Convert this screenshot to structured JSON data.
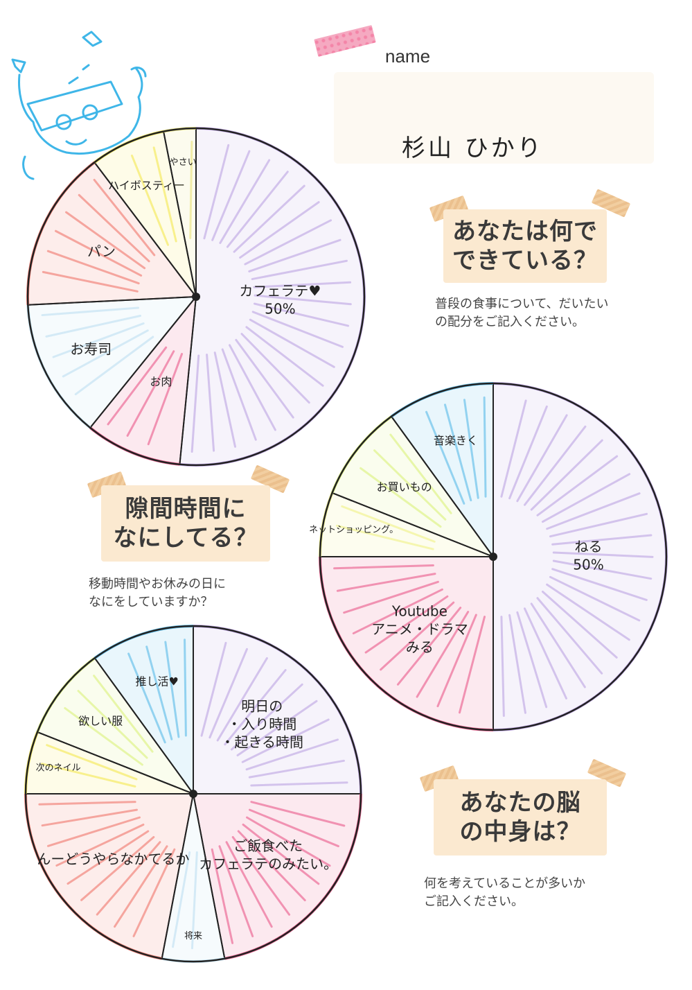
{
  "header": {
    "name_label": "name",
    "name_value": "杉山 ひかり"
  },
  "sections": {
    "food": {
      "title_line1": "あなたは何で",
      "title_line2": "できている？",
      "description": "普段の食事について、だいたい\nの配分をご記入ください。"
    },
    "free_time": {
      "title_line1": "隙間時間に",
      "title_line2": "なにしてる？",
      "description": "移動時間やお休みの日に\nなにをしていますか？"
    },
    "brain": {
      "title_line1": "あなたの脳",
      "title_line2": "の中身は？",
      "description": "何を考えていることが多いか\nご記入ください。"
    }
  },
  "chart_data": [
    {
      "type": "pie",
      "slices": [
        {
          "label": "カフェラテ♥",
          "value": 50,
          "value_label": "50%",
          "color": "#b79be0"
        },
        {
          "label": "お肉",
          "value": 9,
          "color": "#e84a7f"
        },
        {
          "label": "お寿司",
          "value": 13,
          "color": "#b8ddf0"
        },
        {
          "label": "パン",
          "value": 15,
          "color": "#ee6a5e"
        },
        {
          "label": "ハイボスティー",
          "value": 7,
          "color": "#f3e640"
        },
        {
          "label": "やさい",
          "value": 3,
          "color": "#e8e070"
        }
      ]
    },
    {
      "type": "pie",
      "slices": [
        {
          "label": "ねる",
          "value": 50,
          "value_label": "50%",
          "color": "#b79be0"
        },
        {
          "label": "Youtube",
          "sub_label1": "アニメ・ドラマ",
          "sub_label2": "みる",
          "value": 25,
          "color": "#e84a7f"
        },
        {
          "label": "ネットショッピング。",
          "value": 6,
          "color": "#eef07a"
        },
        {
          "label": "お買いもの",
          "value": 9,
          "color": "#d7f070"
        },
        {
          "label": "音楽きく",
          "value": 10,
          "color": "#4bb5e6"
        }
      ]
    },
    {
      "type": "pie",
      "slices": [
        {
          "label": "明日の",
          "sub_label1": "・入り時間",
          "sub_label2": "・起きる時間",
          "value": 25,
          "color": "#b79be0"
        },
        {
          "label": "ご飯食べた",
          "sub_label1": "カフェラテのみたい。",
          "value": 22,
          "color": "#e84a7f"
        },
        {
          "label": "将来",
          "value": 6,
          "color": "#b8ddf0"
        },
        {
          "label": "んーどうやらなかてるか",
          "value": 22,
          "color": "#ee6a5e"
        },
        {
          "label": "次のネイル",
          "value": 6,
          "color": "#f3e640"
        },
        {
          "label": "欲しい服",
          "value": 9,
          "color": "#d7f070"
        },
        {
          "label": "推し活♥",
          "value": 10,
          "color": "#4bb5e6"
        }
      ]
    }
  ]
}
